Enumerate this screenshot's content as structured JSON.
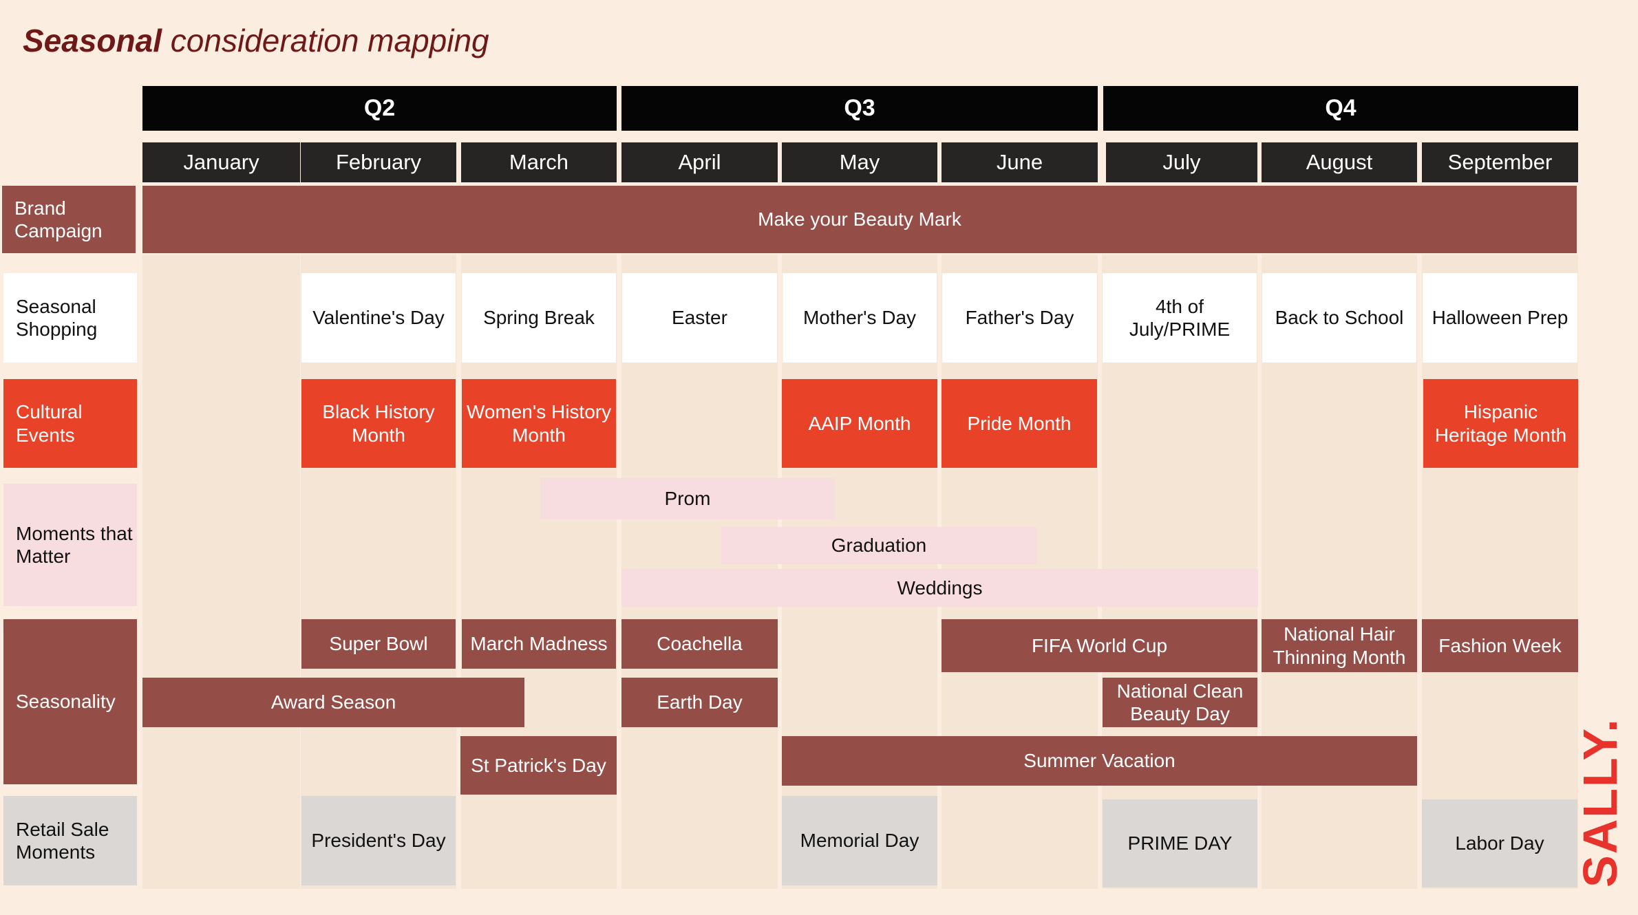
{
  "title": {
    "bold": "Seasonal",
    "rest": " consideration mapping"
  },
  "quarters": [
    "Q2",
    "Q3",
    "Q4"
  ],
  "months": [
    "January",
    "February",
    "March",
    "April",
    "May",
    "June",
    "July",
    "August",
    "September"
  ],
  "rows": {
    "brand": "Brand Campaign",
    "seasonal": "Seasonal Shopping",
    "cultural": "Cultural Events",
    "moments": "Moments that Matter",
    "seasonality": "Seasonality",
    "retail": "Retail Sale Moments"
  },
  "brand_campaign": "Make your Beauty Mark",
  "seasonal_shopping": {
    "february": "Valentine's Day",
    "march": "Spring Break",
    "april": "Easter",
    "may": "Mother's Day",
    "june": "Father's Day",
    "july": "4th of July/PRIME",
    "august": "Back to School",
    "september": "Halloween Prep"
  },
  "cultural_events": {
    "february": "Black History Month",
    "march": "Women's History Month",
    "may": "AAIP Month",
    "june": "Pride Month",
    "september": "Hispanic Heritage Month"
  },
  "moments": {
    "prom": "Prom",
    "graduation": "Graduation",
    "weddings": "Weddings"
  },
  "seasonality": {
    "super_bowl": "Super Bowl",
    "march_madness": "March Madness",
    "coachella": "Coachella",
    "fifa": "FIFA World Cup",
    "hair": "National Hair Thinning Month",
    "fashion": "Fashion Week",
    "award": "Award Season",
    "earth": "Earth Day",
    "clean": "National Clean Beauty Day",
    "patrick": "St Patrick's Day",
    "summer": "Summer Vacation"
  },
  "retail": {
    "presidents": "President's Day",
    "memorial": "Memorial Day",
    "prime": "PRIME DAY",
    "labor": "Labor Day"
  },
  "logo": "SALLY.",
  "colors": {
    "background": "#fbeee0",
    "dark": "#944d47",
    "red": "#e84229",
    "pink": "#f8dde0",
    "grey": "#dad7d5",
    "title": "#6e1818"
  }
}
